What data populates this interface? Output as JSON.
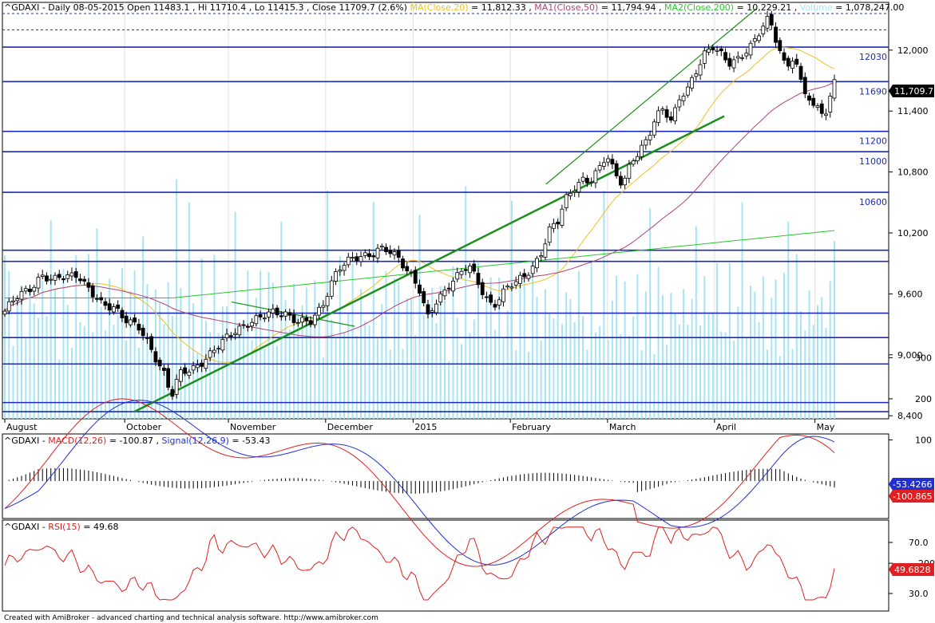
{
  "header": {
    "symbol": "^GDAXI",
    "period": "Daily",
    "date": "08-05-2015",
    "open_label": "Open",
    "open": "11483.1",
    "high_label": "Hi",
    "high": "11710.4",
    "low_label": "Lo",
    "low": "11415.3",
    "close_label": "Close",
    "close": "11709.7 (2.6%)",
    "ma20_label": "MA(Close,20)",
    "ma20_value": "= 11,812.33",
    "ma50_label": "MA1(Close,50)",
    "ma50_value": "= 11,794.94",
    "ma200_label": "MA2(Close,200)",
    "ma200_value": "= 10,229.21",
    "volume_label": "Volume",
    "volume_value": "= 1,078,247.00"
  },
  "macd_header": {
    "symbol": "^GDAXI",
    "macd_label": "MACD(12,26)",
    "macd_value": "= -100.87",
    "signal_label": "Signal(12,26,9)",
    "signal_value": "= -53.43"
  },
  "rsi_header": {
    "symbol": "^GDAXI",
    "rsi_label": "RSI(15)",
    "rsi_value": "= 49.68"
  },
  "price_badge": "11,709.7",
  "signal_badge": "-53.4266",
  "macd_badge": "-100.865",
  "rsi_badge": "49.6828",
  "footer": "Created with AmiBroker - advanced charting and technical analysis software. http://www.amibroker.com",
  "colors": {
    "up_candle": "#ffffff",
    "down_candle": "#000000",
    "ma20": "#f0c020",
    "ma50": "#b0407a",
    "ma200": "#28c828",
    "volume": "#a8e4f4",
    "level_line": "#1c2bb4",
    "trendline": "#1a8f1a",
    "macd": "#e02020",
    "signal": "#2030d0",
    "rsi": "#e02020"
  },
  "chart_data": [
    {
      "type": "candlestick",
      "title": "^GDAXI Daily",
      "x_months": [
        "August",
        "October",
        "November",
        "December",
        "2015",
        "February",
        "March",
        "April",
        "May"
      ],
      "y_ticks": [
        8400,
        9000,
        9600,
        10200,
        10800,
        11400,
        12000
      ],
      "ylim": [
        8370,
        12470
      ],
      "horizontal_levels": [
        {
          "value": 12030,
          "label": "12030"
        },
        {
          "value": 11690,
          "label": "11690"
        },
        {
          "value": 11200,
          "label": "11200"
        },
        {
          "value": 11000,
          "label": "11000"
        },
        {
          "value": 10600,
          "label": "10600"
        },
        {
          "value": 10030,
          "label": ""
        },
        {
          "value": 9920,
          "label": ""
        },
        {
          "value": 9410,
          "label": ""
        },
        {
          "value": 9170,
          "label": ""
        },
        {
          "value": 8910,
          "label": ""
        },
        {
          "value": 8530,
          "label": ""
        },
        {
          "value": 8440,
          "label": ""
        }
      ],
      "dashed_levels": [
        12360,
        12200
      ],
      "trendlines": [
        {
          "from": [
            40,
            8440
          ],
          "to": [
            222,
            11350
          ]
        },
        {
          "from": [
            70,
            9520
          ],
          "to": [
            108,
            9280
          ]
        },
        {
          "from": [
            167,
            10680
          ],
          "to": [
            232,
            12410
          ]
        }
      ],
      "legend": [
        "MA(Close,20)",
        "MA1(Close,50)",
        "MA2(Close,200)",
        "Volume"
      ]
    },
    {
      "type": "line",
      "title": "MACD(12,26)",
      "y_ticks": [
        -200,
        100,
        200,
        300
      ],
      "series": [
        {
          "name": "MACD(12,26)"
        },
        {
          "name": "Signal(12,26,9)"
        }
      ]
    },
    {
      "type": "line",
      "title": "RSI(15)",
      "y_ticks": [
        30.0,
        70.0
      ],
      "series": [
        {
          "name": "RSI(15)"
        }
      ]
    }
  ]
}
